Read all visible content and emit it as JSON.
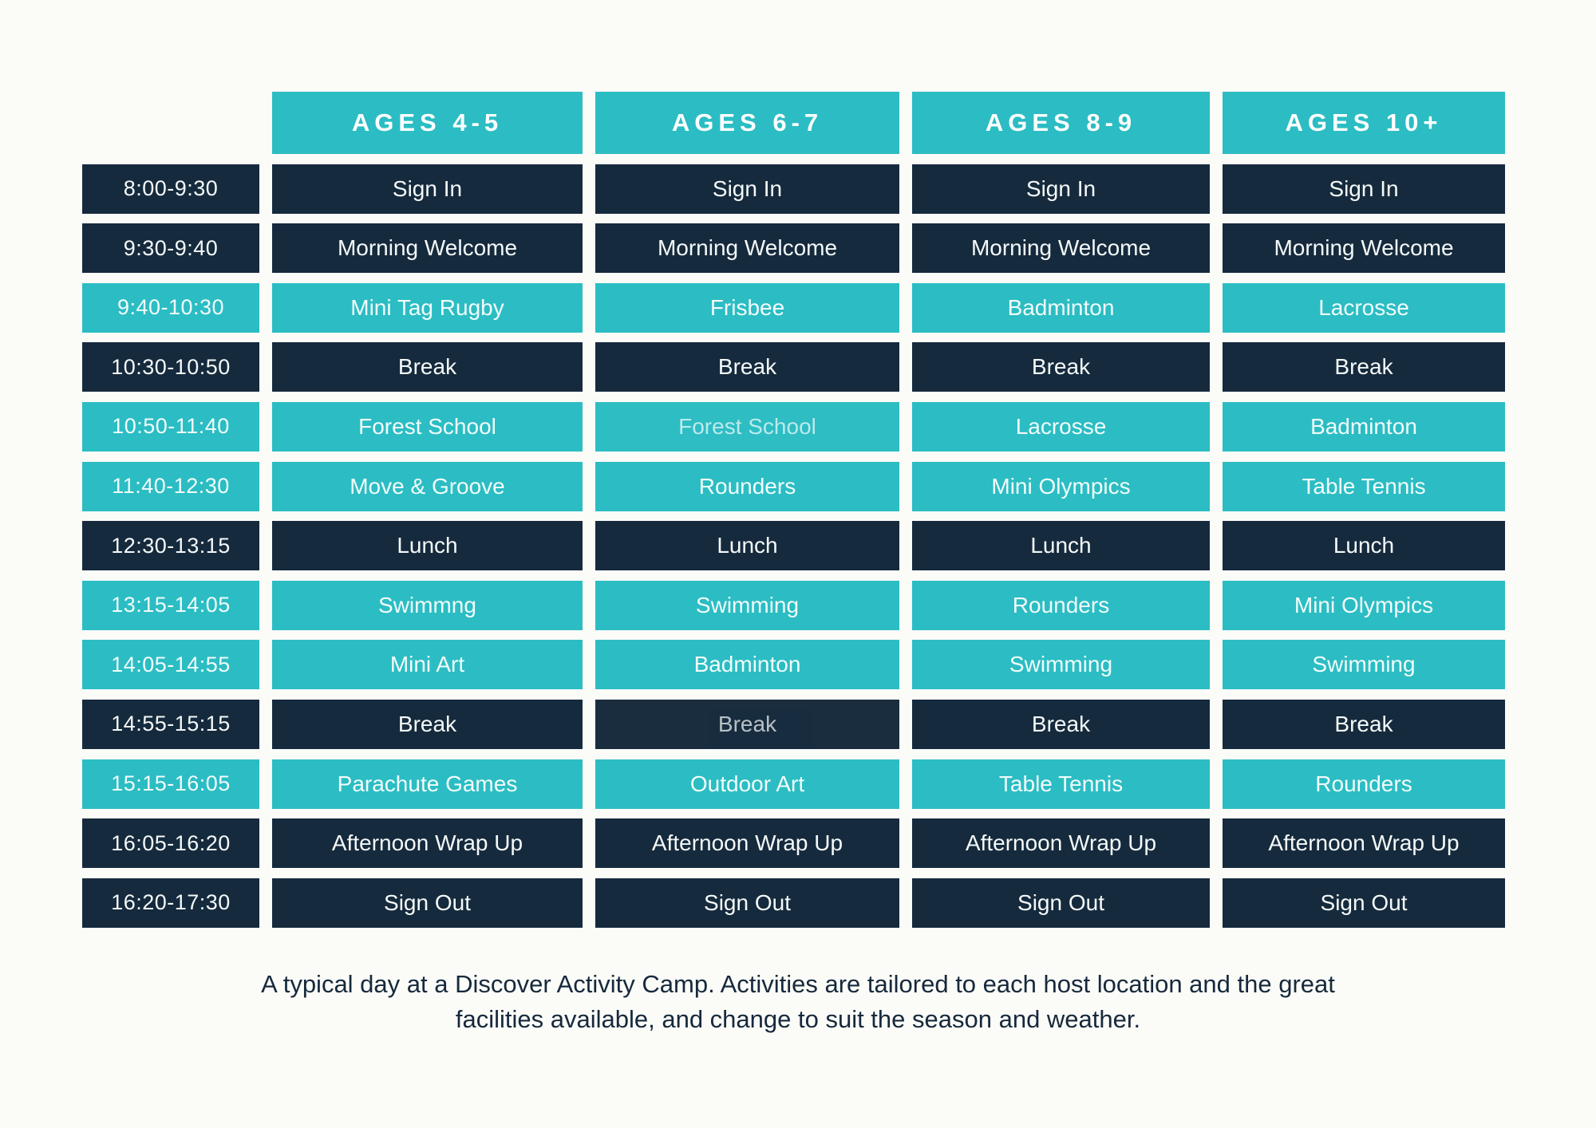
{
  "colors": {
    "teal": "#2BBDC3",
    "navy": "#162A3D",
    "background": "#FBFBF8"
  },
  "table": {
    "column_headers": [
      "AGES 4-5",
      "AGES 6-7",
      "AGES 8-9",
      "AGES 10+"
    ],
    "rows": [
      {
        "time": "8:00-9:30",
        "style": "dark",
        "cells": [
          "Sign In",
          "Sign In",
          "Sign In",
          "Sign In"
        ]
      },
      {
        "time": "9:30-9:40",
        "style": "dark",
        "cells": [
          "Morning Welcome",
          "Morning Welcome",
          "Morning Welcome",
          "Morning Welcome"
        ]
      },
      {
        "time": "9:40-10:30",
        "style": "teal",
        "cells": [
          "Mini Tag Rugby",
          "Frisbee",
          "Badminton",
          "Lacrosse"
        ]
      },
      {
        "time": "10:30-10:50",
        "style": "dark",
        "cells": [
          "Break",
          "Break",
          "Break",
          "Break"
        ]
      },
      {
        "time": "10:50-11:40",
        "style": "teal",
        "cells": [
          "Forest School",
          "Forest School",
          "Lacrosse",
          "Badminton"
        ],
        "light_cells": [
          1
        ]
      },
      {
        "time": "11:40-12:30",
        "style": "teal",
        "cells": [
          "Move & Groove",
          "Rounders",
          "Mini Olympics",
          "Table Tennis"
        ]
      },
      {
        "time": "12:30-13:15",
        "style": "dark",
        "cells": [
          "Lunch",
          "Lunch",
          "Lunch",
          "Lunch"
        ]
      },
      {
        "time": "13:15-14:05",
        "style": "teal",
        "cells": [
          "Swimmng",
          "Swimming",
          "Rounders",
          "Mini Olympics"
        ]
      },
      {
        "time": "14:05-14:55",
        "style": "teal",
        "cells": [
          "Mini Art",
          "Badminton",
          "Swimming",
          "Swimming"
        ]
      },
      {
        "time": "14:55-15:15",
        "style": "dark",
        "cells": [
          "Break",
          "Break",
          "Break",
          "Break"
        ],
        "light_cells": [
          1
        ]
      },
      {
        "time": "15:15-16:05",
        "style": "teal",
        "cells": [
          "Parachute Games",
          "Outdoor Art",
          "Table Tennis",
          "Rounders"
        ]
      },
      {
        "time": "16:05-16:20",
        "style": "dark",
        "cells": [
          "Afternoon Wrap Up",
          "Afternoon Wrap Up",
          "Afternoon Wrap Up",
          "Afternoon Wrap Up"
        ]
      },
      {
        "time": "16:20-17:30",
        "style": "dark",
        "cells": [
          "Sign Out",
          "Sign Out",
          "Sign Out",
          "Sign Out"
        ]
      }
    ]
  },
  "caption": {
    "line1": "A typical day at a Discover Activity Camp. Activities are tailored to each host location and the great",
    "line2": "facilities available,  and change to suit the season and weather."
  }
}
